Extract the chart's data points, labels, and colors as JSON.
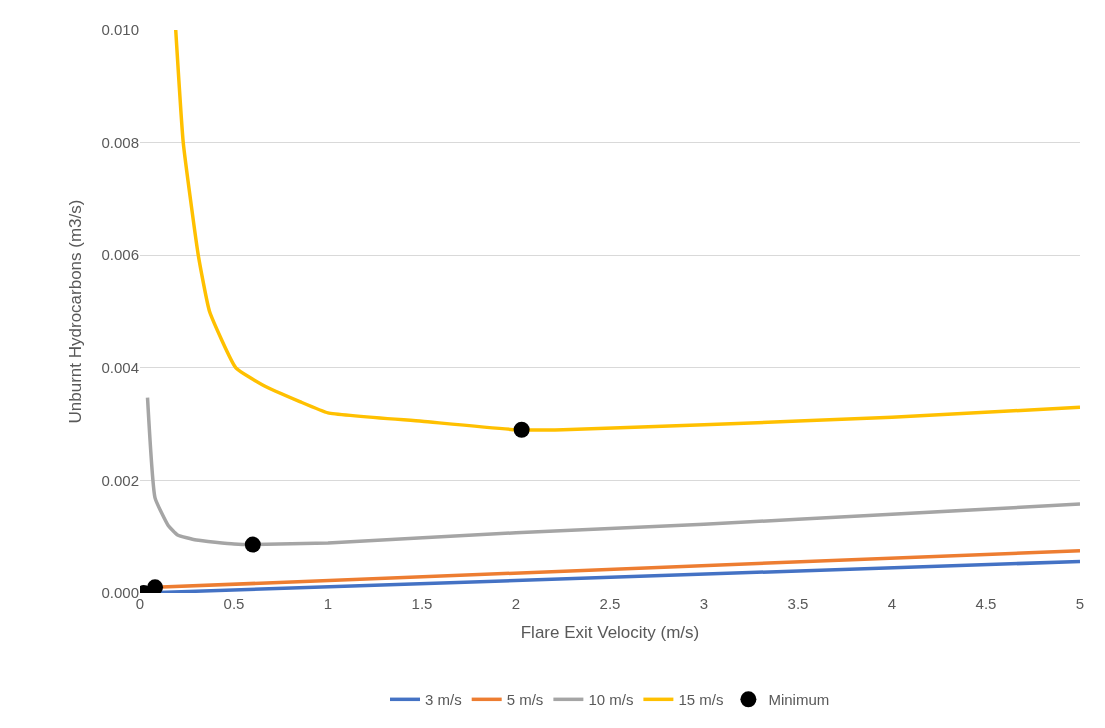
{
  "chart_data": {
    "type": "line",
    "xlabel": "Flare Exit Velocity (m/s)",
    "ylabel": "Unburnt Hydrocarbons (m3/s)",
    "xlim": [
      0,
      5
    ],
    "xticks": [
      0,
      0.5,
      1,
      1.5,
      2,
      2.5,
      3,
      3.5,
      4,
      4.5,
      5
    ],
    "ylim": [
      0,
      0.01
    ],
    "yticks": [
      {
        "value": 0,
        "label": "0.000"
      },
      {
        "value": 0.002,
        "label": "0.002"
      },
      {
        "value": 0.004,
        "label": "0.004"
      },
      {
        "value": 0.006,
        "label": "0.006"
      },
      {
        "value": 0.008,
        "label": "0.008"
      },
      {
        "value": 0.01,
        "label": "0.010"
      }
    ],
    "grid": "y",
    "legend": "bottom",
    "marker": "none",
    "line_style": "solid",
    "series": [
      {
        "name": "3 m/s",
        "color": "#4472c4",
        "x": [
          0.02,
          5
        ],
        "values": [
          0.0,
          0.00056
        ]
      },
      {
        "name": "5 m/s",
        "color": "#ed7d31",
        "x": [
          0.08,
          5
        ],
        "values": [
          0.0001,
          0.00075
        ]
      },
      {
        "name": "10 m/s",
        "color": "#a5a5a5",
        "x": [
          0.04,
          0.08,
          0.15,
          0.2,
          0.3,
          0.5,
          0.6,
          1,
          2,
          3,
          4,
          5
        ],
        "values": [
          0.00347,
          0.00169,
          0.0012,
          0.00103,
          0.00094,
          0.00087,
          0.00086,
          0.00089,
          0.00107,
          0.00122,
          0.0014,
          0.00158
        ]
      },
      {
        "name": "15 m/s",
        "color": "#ffc000",
        "x": [
          0.19,
          0.23,
          0.31,
          0.37,
          0.51,
          0.65,
          0.85,
          1.0,
          1.5,
          2.0,
          2.25,
          3,
          4,
          5
        ],
        "values": [
          0.01,
          0.008,
          0.006,
          0.005,
          0.004,
          0.0037,
          0.0034,
          0.0032,
          0.00305,
          0.0029,
          0.0029,
          0.00299,
          0.00312,
          0.0033
        ]
      },
      {
        "name": "Minimum",
        "type": "scatter",
        "marker": "circle",
        "color": "#000000",
        "x": [
          0.02,
          0.08,
          0.6,
          2.03
        ],
        "values": [
          0.0,
          0.0001,
          0.00086,
          0.0029
        ]
      }
    ]
  }
}
